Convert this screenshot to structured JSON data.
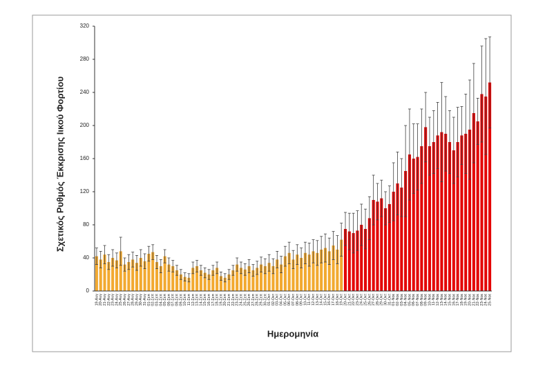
{
  "chart_data": {
    "type": "bar",
    "y_label": "Σχετικός Ρυθμός Έκκρισης Ιικού Φορτίου",
    "x_label": "Ημερομηνία",
    "categories": [
      "19-Αυγ",
      "20-Αυγ",
      "21-Αυγ",
      "22-Αυγ",
      "23-Αυγ",
      "24-Αυγ",
      "25-Αυγ",
      "26-Αυγ",
      "27-Αυγ",
      "28-Αυγ",
      "29-Αυγ",
      "30-Αυγ",
      "31-Αυγ",
      "01-Σεπ",
      "02-Σεπ",
      "03-Σεπ",
      "04-Σεπ",
      "05-Σεπ",
      "06-Σεπ",
      "07-Σεπ",
      "08-Σεπ",
      "09-Σεπ",
      "10-Σεπ",
      "11-Σεπ",
      "12-Σεπ",
      "13-Σεπ",
      "14-Σεπ",
      "15-Σεπ",
      "16-Σεπ",
      "17-Σεπ",
      "18-Σεπ",
      "19-Σεπ",
      "20-Σεπ",
      "21-Σεπ",
      "22-Σεπ",
      "23-Σεπ",
      "24-Σεπ",
      "25-Σεπ",
      "26-Σεπ",
      "27-Σεπ",
      "28-Σεπ",
      "29-Σεπ",
      "30-Σεπ",
      "01-Οκτ",
      "02-Οκτ",
      "03-Οκτ",
      "04-Οκτ",
      "05-Οκτ",
      "06-Οκτ",
      "07-Οκτ",
      "08-Οκτ",
      "09-Οκτ",
      "10-Οκτ",
      "11-Οκτ",
      "12-Οκτ",
      "13-Οκτ",
      "14-Οκτ",
      "15-Οκτ",
      "16-Οκτ",
      "17-Οκτ",
      "18-Οκτ",
      "19-Οκτ",
      "20-Οκτ",
      "21-Οκτ",
      "22-Οκτ",
      "23-Οκτ",
      "24-Οκτ",
      "25-Οκτ",
      "26-Οκτ",
      "27-Οκτ",
      "28-Οκτ",
      "29-Οκτ",
      "30-Οκτ",
      "31-Οκτ",
      "01-Νοε",
      "02-Νοε",
      "03-Νοε",
      "04-Νοε",
      "05-Νοε",
      "06-Νοε",
      "07-Νοε",
      "08-Νοε",
      "09-Νοε",
      "10-Νοε",
      "11-Νοε",
      "12-Νοε",
      "13-Νοε",
      "14-Νοε",
      "15-Νοε",
      "16-Νοε",
      "17-Νοε",
      "18-Νοε",
      "19-Νοε",
      "20-Νοε",
      "21-Νοε",
      "22-Νοε",
      "23-Νοε",
      "24-Νοε",
      "25-Νοε"
    ],
    "values": [
      42,
      38,
      44,
      35,
      40,
      37,
      48,
      32,
      35,
      38,
      34,
      40,
      36,
      45,
      47,
      35,
      30,
      42,
      32,
      30,
      25,
      20,
      17,
      16,
      28,
      30,
      25,
      22,
      20,
      25,
      28,
      18,
      16,
      20,
      25,
      32,
      28,
      26,
      30,
      25,
      28,
      32,
      30,
      34,
      30,
      38,
      32,
      42,
      46,
      38,
      44,
      40,
      46,
      44,
      48,
      46,
      50,
      52,
      48,
      55,
      50,
      62,
      75,
      72,
      70,
      73,
      80,
      75,
      88,
      110,
      108,
      112,
      100,
      105,
      120,
      130,
      125,
      145,
      165,
      160,
      162,
      175,
      198,
      175,
      180,
      188,
      192,
      190,
      180,
      170,
      180,
      188,
      190,
      195,
      215,
      205,
      238,
      235,
      252
    ],
    "errors": [
      10,
      10,
      11,
      9,
      10,
      9,
      17,
      8,
      9,
      9,
      9,
      10,
      9,
      9,
      9,
      8,
      8,
      8,
      8,
      7,
      6,
      6,
      5,
      5,
      7,
      7,
      6,
      6,
      6,
      6,
      7,
      5,
      5,
      6,
      6,
      8,
      7,
      7,
      8,
      7,
      8,
      9,
      9,
      10,
      9,
      10,
      10,
      12,
      13,
      11,
      12,
      12,
      13,
      14,
      14,
      15,
      16,
      17,
      16,
      17,
      17,
      20,
      20,
      22,
      24,
      24,
      25,
      24,
      26,
      30,
      22,
      22,
      20,
      22,
      35,
      38,
      35,
      55,
      55,
      42,
      40,
      45,
      42,
      35,
      38,
      40,
      60,
      45,
      38,
      40,
      42,
      35,
      48,
      60,
      60,
      28,
      58,
      70,
      55
    ],
    "color": "#f2a930",
    "color2": "#e30000",
    "color2_from": "20-Οκτ",
    "error_color": "#404040",
    "ylim": [
      0,
      320
    ],
    "yticks": [
      0,
      40,
      80,
      120,
      160,
      200,
      240,
      280,
      320
    ]
  }
}
